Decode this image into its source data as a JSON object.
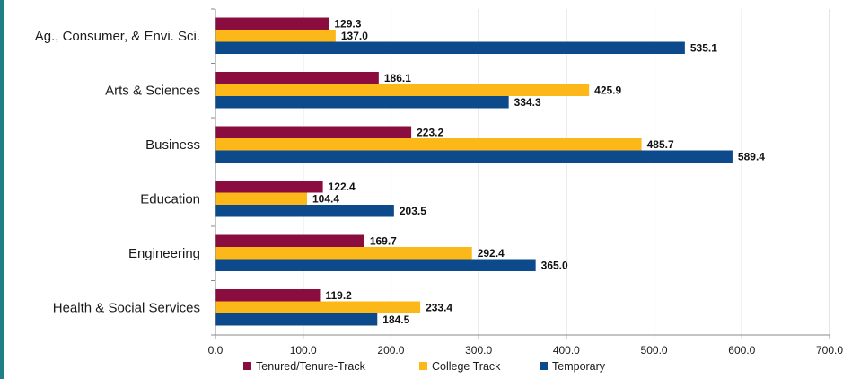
{
  "chart_data": {
    "type": "bar",
    "orientation": "horizontal",
    "categories": [
      "Ag., Consumer, & Envi. Sci.",
      "Arts & Sciences",
      "Business",
      "Education",
      "Engineering",
      "Health & Social Services"
    ],
    "series": [
      {
        "name": "Tenured/Tenure-Track",
        "color": "#8b0d3f",
        "values": [
          129.3,
          186.1,
          223.2,
          122.4,
          169.7,
          119.2
        ]
      },
      {
        "name": "College Track",
        "color": "#fbb818",
        "values": [
          137.0,
          425.9,
          485.7,
          104.4,
          292.4,
          233.4
        ]
      },
      {
        "name": "Temporary",
        "color": "#0d4a8c",
        "values": [
          535.1,
          334.3,
          589.4,
          203.5,
          365.0,
          184.5
        ]
      }
    ],
    "xlim": [
      0,
      700
    ],
    "xticks": [
      "0.0",
      "100.0",
      "200.0",
      "300.0",
      "400.0",
      "500.0",
      "600.0",
      "700.0"
    ],
    "grid": true,
    "legend_position": "bottom",
    "title": "",
    "xlabel": "",
    "ylabel": ""
  }
}
